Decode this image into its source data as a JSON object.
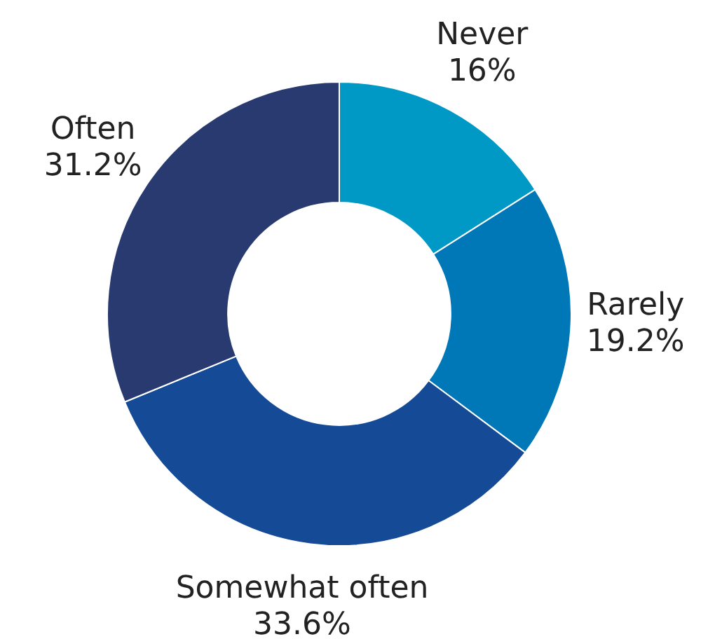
{
  "chart_data": {
    "type": "donut",
    "categories": [
      "Never",
      "Rarely",
      "Somewhat often",
      "Often"
    ],
    "values": [
      16,
      19.2,
      33.6,
      31.2
    ],
    "colors": [
      "#0099c6",
      "#0077b6",
      "#144a96",
      "#283a70"
    ],
    "value_labels": [
      "16%",
      "19.2%",
      "33.6%",
      "31.2%"
    ],
    "legend": false
  }
}
